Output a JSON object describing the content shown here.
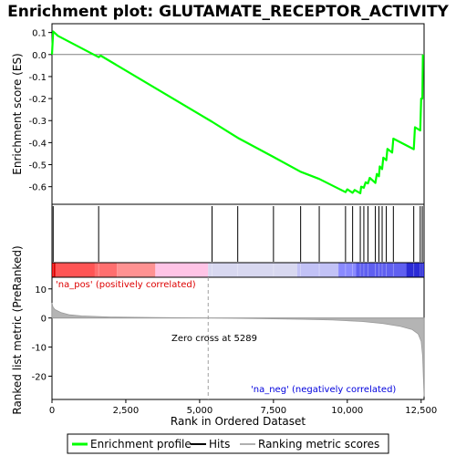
{
  "chart_data": {
    "type": "line",
    "title": "Enrichment plot: GLUTAMATE_RECEPTOR_ACTIVITY",
    "es_panel": {
      "ylabel": "Enrichment score (ES)",
      "ylim": [
        -0.68,
        0.14
      ],
      "yticks": [
        "0.1",
        "0.0",
        "-0.1",
        "-0.2",
        "-0.3",
        "-0.4",
        "-0.5",
        "-0.6"
      ],
      "line_color": "#00ff00",
      "profile": [
        [
          0,
          0.0
        ],
        [
          40,
          0.105
        ],
        [
          200,
          0.085
        ],
        [
          1580,
          -0.012
        ],
        [
          1650,
          -0.005
        ],
        [
          5420,
          -0.305
        ],
        [
          6290,
          -0.378
        ],
        [
          7500,
          -0.465
        ],
        [
          8420,
          -0.532
        ],
        [
          9050,
          -0.565
        ],
        [
          9940,
          -0.625
        ],
        [
          10000,
          -0.612
        ],
        [
          10180,
          -0.628
        ],
        [
          10250,
          -0.615
        ],
        [
          10440,
          -0.63
        ],
        [
          10470,
          -0.6
        ],
        [
          10560,
          -0.605
        ],
        [
          10620,
          -0.58
        ],
        [
          10700,
          -0.585
        ],
        [
          10760,
          -0.56
        ],
        [
          10950,
          -0.583
        ],
        [
          11000,
          -0.542
        ],
        [
          11070,
          -0.553
        ],
        [
          11100,
          -0.508
        ],
        [
          11180,
          -0.52
        ],
        [
          11220,
          -0.468
        ],
        [
          11320,
          -0.48
        ],
        [
          11360,
          -0.428
        ],
        [
          11520,
          -0.445
        ],
        [
          11560,
          -0.382
        ],
        [
          12250,
          -0.43
        ],
        [
          12290,
          -0.33
        ],
        [
          12470,
          -0.345
        ],
        [
          12500,
          -0.2
        ],
        [
          12540,
          -0.2
        ],
        [
          12560,
          0.0
        ]
      ]
    },
    "hits": [
      40,
      1580,
      5420,
      6290,
      7500,
      8420,
      9050,
      9940,
      10180,
      10440,
      10560,
      10700,
      10950,
      11070,
      11180,
      11320,
      11560,
      12250,
      12470,
      12540
    ],
    "rank_panel": {
      "ylabel": "Ranked list metric (PreRanked)",
      "xlabel": "Rank in Ordered Dataset",
      "ylim": [
        -28,
        14
      ],
      "yticks": [
        "10",
        "0",
        "-10",
        "-20"
      ],
      "xticks": [
        "0",
        "2,500",
        "5,000",
        "7,500",
        "10,000",
        "12,500"
      ],
      "xlim": [
        0,
        12600
      ],
      "zero_cross_label": "Zero cross at 5289",
      "zero_cross": 5289,
      "pos_label": "'na_pos' (positively correlated)",
      "neg_label": "'na_neg' (negatively correlated)",
      "pos_color": "#dd0000",
      "neg_color": "#0000dd",
      "metric_curve": [
        [
          0,
          5.2
        ],
        [
          30,
          3.8
        ],
        [
          100,
          2.9
        ],
        [
          300,
          1.9
        ],
        [
          600,
          1.1
        ],
        [
          1000,
          0.7
        ],
        [
          2000,
          0.35
        ],
        [
          3500,
          0.15
        ],
        [
          5289,
          0.0
        ],
        [
          7000,
          -0.2
        ],
        [
          8500,
          -0.45
        ],
        [
          9500,
          -0.7
        ],
        [
          10500,
          -1.2
        ],
        [
          11200,
          -1.9
        ],
        [
          11800,
          -2.9
        ],
        [
          12200,
          -4.0
        ],
        [
          12400,
          -5.5
        ],
        [
          12500,
          -8.0
        ],
        [
          12550,
          -13.0
        ],
        [
          12600,
          -27.0
        ]
      ]
    },
    "band_segments": [
      {
        "from": 0,
        "to": 120,
        "color": "#dd0000"
      },
      {
        "from": 120,
        "to": 1450,
        "color": "#ff5555"
      },
      {
        "from": 1450,
        "to": 2200,
        "color": "#ff6f6f"
      },
      {
        "from": 2200,
        "to": 3500,
        "color": "#ff9292"
      },
      {
        "from": 3500,
        "to": 5289,
        "color": "#ffc4e6"
      },
      {
        "from": 5289,
        "to": 8300,
        "color": "#d8d8f0"
      },
      {
        "from": 8300,
        "to": 9700,
        "color": "#c2c2f6"
      },
      {
        "from": 9700,
        "to": 10300,
        "color": "#8a8aff"
      },
      {
        "from": 10300,
        "to": 12000,
        "color": "#6060f0"
      },
      {
        "from": 12000,
        "to": 12600,
        "color": "#2b2bd6"
      }
    ],
    "legend": {
      "items": [
        {
          "label": "Enrichment profile",
          "color": "#00ff00"
        },
        {
          "label": "Hits",
          "color": "#000000"
        },
        {
          "label": "Ranking metric scores",
          "color": "#b0b0b0"
        }
      ]
    }
  }
}
